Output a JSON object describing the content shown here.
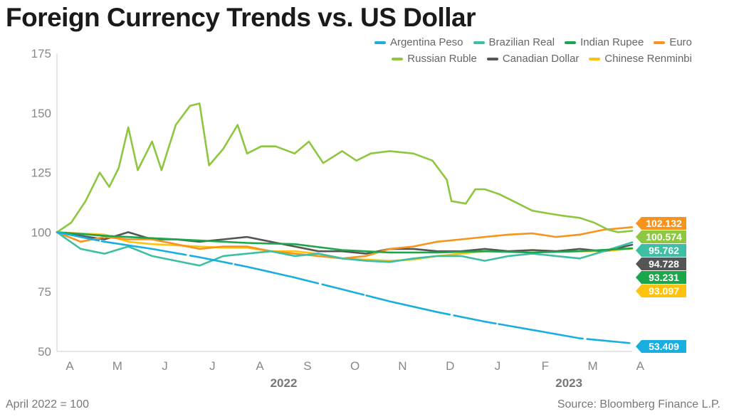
{
  "title": "Foreign Currency Trends vs. US Dollar",
  "footer": {
    "note": "April 2022 = 100",
    "source": "Source: Bloomberg Finance L.P."
  },
  "chart_data": {
    "type": "line",
    "title": "Foreign Currency Trends vs. US Dollar",
    "xlabel": "",
    "ylabel": "",
    "ylim": [
      50,
      175
    ],
    "yticks": [
      50,
      75,
      100,
      125,
      150,
      175
    ],
    "month_labels": [
      "A",
      "M",
      "J",
      "J",
      "A",
      "S",
      "O",
      "N",
      "D",
      "J",
      "F",
      "M",
      "A"
    ],
    "year_labels": [
      {
        "label": "2022",
        "month_index": 4.5
      },
      {
        "label": "2023",
        "month_index": 10.5
      }
    ],
    "x_unit": "months since April 2022",
    "legend_position": "top-right",
    "series": [
      {
        "name": "Argentina Peso",
        "color": "#19aee0",
        "end_label": "53.409",
        "x": [
          0,
          1,
          2,
          3,
          4,
          5,
          6,
          7,
          8,
          9,
          10,
          11,
          12.1
        ],
        "values": [
          100,
          96,
          93,
          89.5,
          85.5,
          81,
          76,
          71,
          66.5,
          62.5,
          59,
          55.5,
          53.409
        ]
      },
      {
        "name": "Brazilian Real",
        "color": "#3dbfa4",
        "end_label": "95.762",
        "x": [
          0,
          0.5,
          1,
          1.5,
          2,
          2.5,
          3,
          3.5,
          4,
          4.5,
          5,
          5.5,
          6,
          6.5,
          7,
          7.5,
          8,
          8.5,
          9,
          9.5,
          10,
          10.5,
          11,
          11.5,
          12.1
        ],
        "values": [
          100,
          93,
          91,
          94,
          90,
          88,
          86,
          90,
          91,
          92,
          90,
          91,
          89,
          88,
          87.5,
          89,
          90,
          90,
          88,
          90,
          91,
          90,
          89,
          92,
          95.762
        ]
      },
      {
        "name": "Indian Rupee",
        "color": "#1aa64a",
        "end_label": "93.231",
        "x": [
          0,
          1,
          2,
          3,
          4,
          5,
          6,
          7,
          8,
          9,
          10,
          11,
          12.1
        ],
        "values": [
          100,
          98.5,
          97.5,
          96.5,
          95.5,
          95,
          92.5,
          91.5,
          91.5,
          92,
          91.5,
          92,
          93.231
        ]
      },
      {
        "name": "Euro",
        "color": "#f7941d",
        "end_label": "102.132",
        "x": [
          0,
          0.5,
          1,
          1.5,
          2,
          2.5,
          3,
          3.5,
          4,
          4.5,
          5,
          5.5,
          6,
          6.5,
          7,
          7.5,
          8,
          8.5,
          9,
          9.5,
          10,
          10.5,
          11,
          11.5,
          12.1
        ],
        "values": [
          100,
          96,
          98,
          97,
          97,
          95,
          93,
          94,
          94,
          92,
          91,
          90,
          89,
          90,
          93,
          94,
          96,
          97,
          98,
          99,
          99.5,
          98,
          99,
          101,
          102.132
        ]
      },
      {
        "name": "Russian Ruble",
        "color": "#8dc63f",
        "end_label": "100.574",
        "x": [
          0,
          0.3,
          0.6,
          0.9,
          1.1,
          1.3,
          1.5,
          1.7,
          2,
          2.2,
          2.5,
          2.8,
          3.0,
          3.2,
          3.5,
          3.8,
          4,
          4.3,
          4.6,
          5,
          5.3,
          5.6,
          6,
          6.3,
          6.6,
          7,
          7.5,
          7.9,
          8.2,
          8.3,
          8.6,
          8.8,
          9,
          9.3,
          9.6,
          10,
          10.3,
          10.6,
          11,
          11.3,
          11.6,
          11.8,
          12.1
        ],
        "values": [
          100,
          104,
          113,
          125,
          119,
          127,
          144,
          126,
          138,
          126,
          145,
          153,
          154,
          128,
          135,
          145,
          133,
          136,
          136,
          133,
          138,
          129,
          134,
          130,
          133,
          134,
          133,
          130,
          122,
          113,
          112,
          118,
          118,
          116,
          113,
          109,
          108,
          107,
          106,
          104,
          101,
          100,
          100.574
        ]
      },
      {
        "name": "Canadian Dollar",
        "color": "#555555",
        "end_label": "94.728",
        "x": [
          0,
          1,
          1.5,
          2,
          2.5,
          3,
          3.5,
          4,
          4.5,
          5,
          5.5,
          6,
          6.5,
          7,
          7.5,
          8,
          8.5,
          9,
          9.5,
          10,
          10.5,
          11,
          11.5,
          12.1
        ],
        "values": [
          100,
          97,
          100,
          97,
          97,
          96,
          97,
          98,
          96,
          94,
          92,
          92,
          91,
          93,
          93,
          92,
          92,
          93,
          92,
          92.5,
          92,
          93,
          92,
          94.728
        ]
      },
      {
        "name": "Chinese Renminbi",
        "color": "#ffc20e",
        "end_label": "93.097",
        "x": [
          0,
          1,
          1.5,
          2,
          2.5,
          3,
          3.5,
          4,
          4.5,
          5,
          5.5,
          6,
          6.5,
          7,
          7.5,
          8,
          8.5,
          9,
          9.5,
          10,
          10.5,
          11,
          11.5,
          12.1
        ],
        "values": [
          100,
          99,
          96,
          95,
          94.5,
          94,
          93.5,
          93.5,
          92,
          92,
          91,
          89,
          88.5,
          88,
          88.5,
          90,
          91,
          92,
          92,
          92.5,
          92,
          92,
          92,
          93.097
        ]
      }
    ]
  }
}
